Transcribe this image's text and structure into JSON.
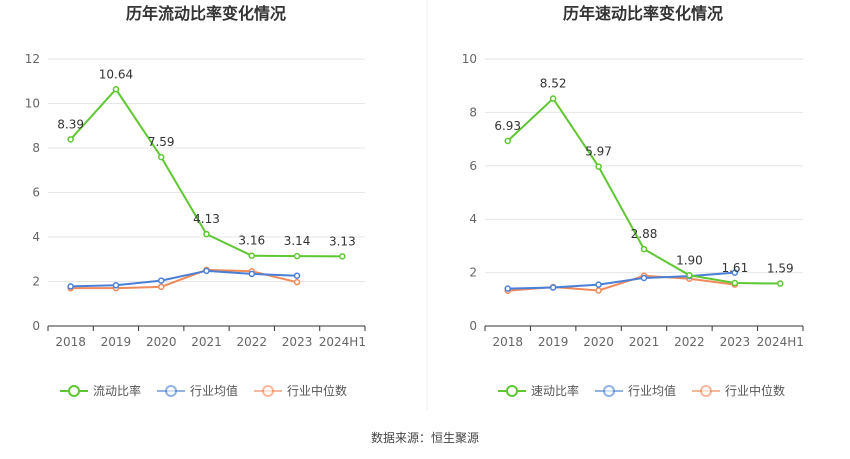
{
  "source_label": "数据来源：恒生聚源",
  "chart_data": [
    {
      "type": "line",
      "title": "历年流动比率变化情况",
      "categories": [
        "2018",
        "2019",
        "2020",
        "2021",
        "2022",
        "2023",
        "2024H1"
      ],
      "ylim": [
        0,
        12
      ],
      "yticks": [
        0,
        2,
        4,
        6,
        8,
        10,
        12
      ],
      "grid": true,
      "legend_position": "bottom",
      "series": [
        {
          "name": "流动比率",
          "color": "#5ec732",
          "values": [
            8.39,
            10.64,
            7.59,
            4.13,
            3.16,
            3.14,
            3.13
          ],
          "labels": true
        },
        {
          "name": "行业均值",
          "color": "#4a7fd6",
          "values": [
            1.78,
            1.83,
            2.04,
            2.48,
            2.34,
            2.26,
            null
          ],
          "labels": false
        },
        {
          "name": "行业中位数",
          "color": "#f08a5a",
          "values": [
            1.7,
            1.7,
            1.76,
            2.52,
            2.46,
            1.97,
            null
          ],
          "labels": false
        }
      ]
    },
    {
      "type": "line",
      "title": "历年速动比率变化情况",
      "categories": [
        "2018",
        "2019",
        "2020",
        "2021",
        "2022",
        "2023",
        "2024H1"
      ],
      "ylim": [
        0,
        10
      ],
      "yticks": [
        0,
        2,
        4,
        6,
        8,
        10
      ],
      "grid": true,
      "legend_position": "bottom",
      "series": [
        {
          "name": "速动比率",
          "color": "#5ec732",
          "values": [
            6.93,
            8.52,
            5.97,
            2.88,
            1.9,
            1.61,
            1.59
          ],
          "labels": true
        },
        {
          "name": "行业均值",
          "color": "#4a7fd6",
          "values": [
            1.4,
            1.44,
            1.55,
            1.8,
            1.87,
            2.0,
            null
          ],
          "labels": false
        },
        {
          "name": "行业中位数",
          "color": "#f08a5a",
          "values": [
            1.32,
            1.46,
            1.33,
            1.88,
            1.77,
            1.55,
            null
          ],
          "labels": false
        }
      ]
    }
  ]
}
